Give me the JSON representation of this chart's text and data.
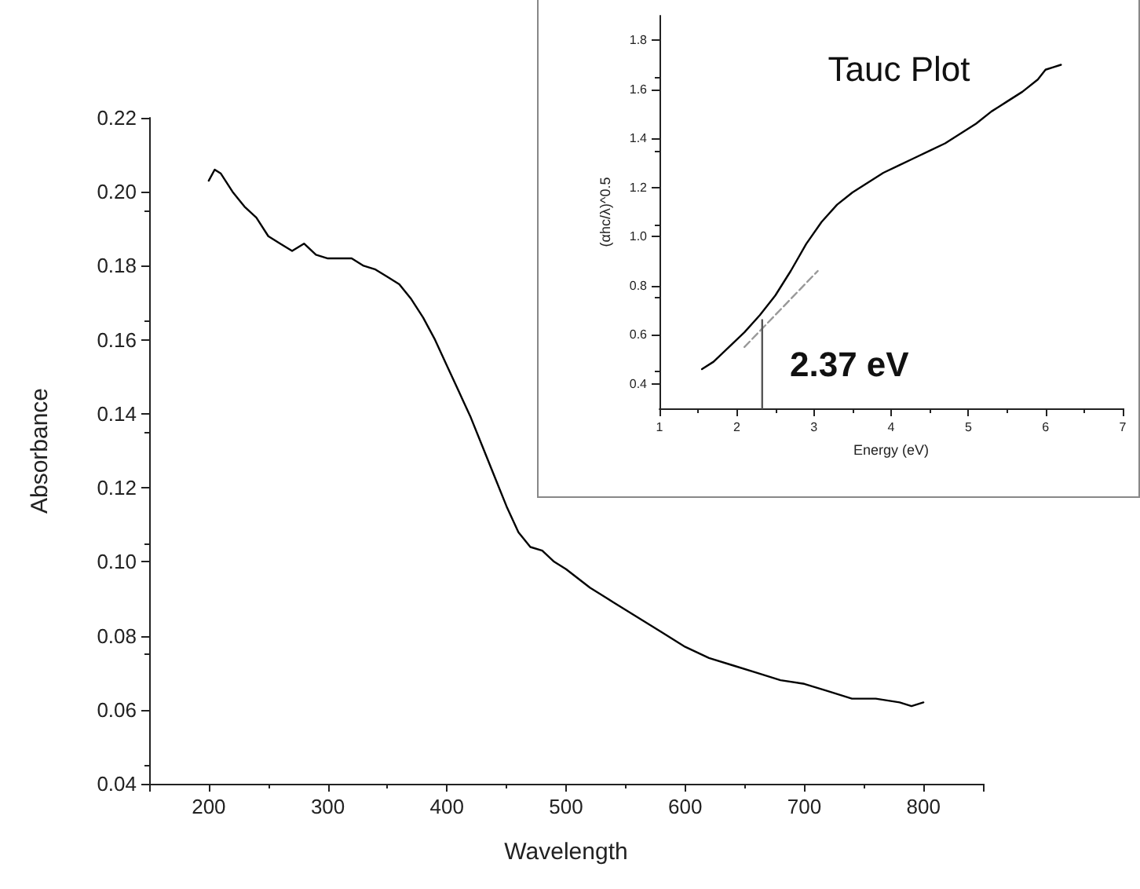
{
  "chart_data": [
    {
      "type": "line",
      "xlabel": "Wavelength",
      "ylabel": "Absorbance",
      "xlim": [
        150,
        850
      ],
      "xticks": [
        {
          "value": 150,
          "label": null
        },
        200,
        300,
        400,
        500,
        600,
        700,
        800,
        {
          "value": 850,
          "label": null
        }
      ],
      "ylim": [
        0.04,
        0.22
      ],
      "yticks": [
        0.04,
        0.06,
        0.08,
        {
          "value": 0.1,
          "label": "0.10"
        },
        0.12,
        0.14,
        0.16,
        0.18,
        {
          "value": 0.2,
          "label": "0.20"
        },
        0.22
      ],
      "grid": false,
      "marker": "none",
      "line_style": "solid",
      "series": [
        {
          "color": "#000000",
          "x": [
            200,
            205,
            210,
            220,
            230,
            240,
            250,
            260,
            270,
            280,
            290,
            300,
            320,
            330,
            340,
            350,
            360,
            370,
            380,
            390,
            400,
            410,
            420,
            430,
            440,
            450,
            460,
            470,
            480,
            490,
            500,
            520,
            540,
            560,
            580,
            600,
            620,
            640,
            660,
            680,
            700,
            720,
            740,
            760,
            780,
            790,
            800
          ],
          "values": [
            0.203,
            0.206,
            0.205,
            0.2,
            0.196,
            0.193,
            0.188,
            0.186,
            0.184,
            0.186,
            0.183,
            0.182,
            0.182,
            0.18,
            0.179,
            0.177,
            0.175,
            0.171,
            0.166,
            0.16,
            0.153,
            0.146,
            0.139,
            0.131,
            0.123,
            0.115,
            0.108,
            0.104,
            0.103,
            0.1,
            0.098,
            0.093,
            0.089,
            0.085,
            0.081,
            0.077,
            0.074,
            0.072,
            0.07,
            0.068,
            0.067,
            0.065,
            0.063,
            0.063,
            0.062,
            0.061,
            0.062
          ]
        }
      ]
    },
    {
      "type": "line",
      "title": "Tauc Plot",
      "xlabel": "Energy (eV)",
      "ylabel": "(αhc/λ)^0.5",
      "xlim": [
        1,
        7
      ],
      "xticks": [
        1,
        2,
        3,
        4,
        5,
        6,
        7
      ],
      "ylim": [
        0.3,
        1.9
      ],
      "yticks": [
        0.4,
        0.6,
        0.8,
        {
          "value": 1,
          "label": "1.0"
        },
        1.2,
        1.4,
        1.6,
        1.8
      ],
      "grid": false,
      "marker": "none",
      "annotations": [
        "2.37 eV"
      ],
      "series": [
        {
          "color": "#000000",
          "x": [
            1.55,
            1.7,
            1.9,
            2.1,
            2.3,
            2.5,
            2.7,
            2.9,
            3.1,
            3.3,
            3.5,
            3.7,
            3.9,
            4.1,
            4.3,
            4.5,
            4.7,
            4.9,
            5.1,
            5.3,
            5.5,
            5.7,
            5.9,
            6.0,
            6.1,
            6.2
          ],
          "values": [
            0.46,
            0.49,
            0.55,
            0.61,
            0.68,
            0.76,
            0.86,
            0.97,
            1.06,
            1.13,
            1.18,
            1.22,
            1.26,
            1.29,
            1.32,
            1.35,
            1.38,
            1.42,
            1.46,
            1.51,
            1.55,
            1.59,
            1.64,
            1.68,
            1.69,
            1.7
          ]
        },
        {
          "color": "#999999",
          "line_style": "dashed",
          "x": [
            2.1,
            3.05
          ],
          "values": [
            0.55,
            0.86
          ]
        },
        {
          "color": "#555555",
          "x": [
            2.33,
            2.33
          ],
          "values": [
            0.3,
            0.66
          ]
        }
      ]
    }
  ]
}
